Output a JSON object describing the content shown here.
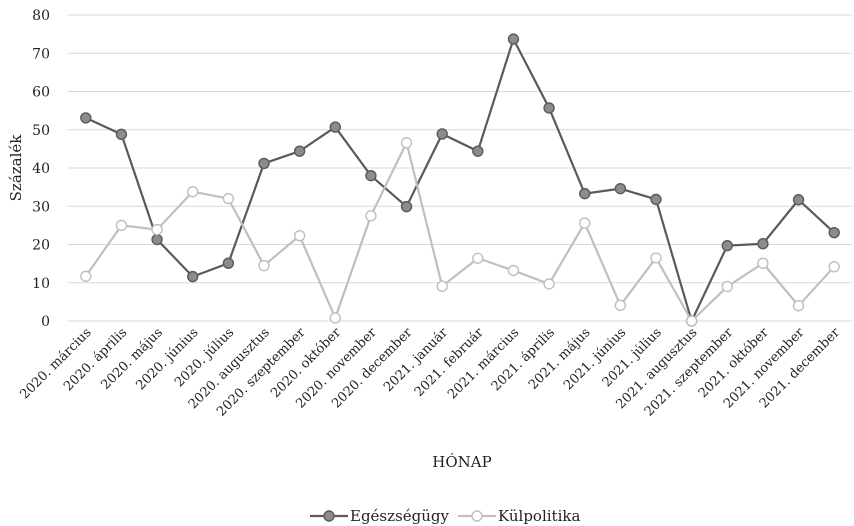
{
  "chart_data": {
    "type": "line",
    "title": "",
    "xlabel": "HÓNAP",
    "ylabel": "Százalék",
    "ylim": [
      0,
      80
    ],
    "yticks": [
      0,
      10,
      20,
      30,
      40,
      50,
      60,
      70,
      80
    ],
    "grid": true,
    "legend_position": "bottom",
    "categories": [
      "2020. március",
      "2020. április",
      "2020. május",
      "2020. június",
      "2020. július",
      "2020. augusztus",
      "2020. szeptember",
      "2020. október",
      "2020. november",
      "2020. december",
      "2021. január",
      "2021. február",
      "2021. március",
      "2021. április",
      "2021. május",
      "2021. június",
      "2021. július",
      "2021. augusztus",
      "2021. szeptember",
      "2021. október",
      "2021. november",
      "2021. december"
    ],
    "series": [
      {
        "name": "Egészségügy",
        "color": "#7f7f7f",
        "stroke": "#5a5a5a",
        "marker_fill": "#8c8c8c",
        "values": [
          53.1,
          48.8,
          21.3,
          11.6,
          15.1,
          41.2,
          44.4,
          50.7,
          38.0,
          29.9,
          48.9,
          44.4,
          73.7,
          55.7,
          33.3,
          34.6,
          31.8,
          0,
          19.7,
          20.2,
          31.7,
          23.1
        ]
      },
      {
        "name": "Külpolitika",
        "color": "#c0c0c0",
        "stroke": "#bfbfbf",
        "marker_fill": "#ffffff",
        "values": [
          11.7,
          25.0,
          23.9,
          33.8,
          32.0,
          14.5,
          22.3,
          0.8,
          27.5,
          46.6,
          9.1,
          16.4,
          13.2,
          9.7,
          25.6,
          4.1,
          16.5,
          0,
          9.0,
          15.1,
          4.0,
          14.2
        ]
      }
    ]
  }
}
